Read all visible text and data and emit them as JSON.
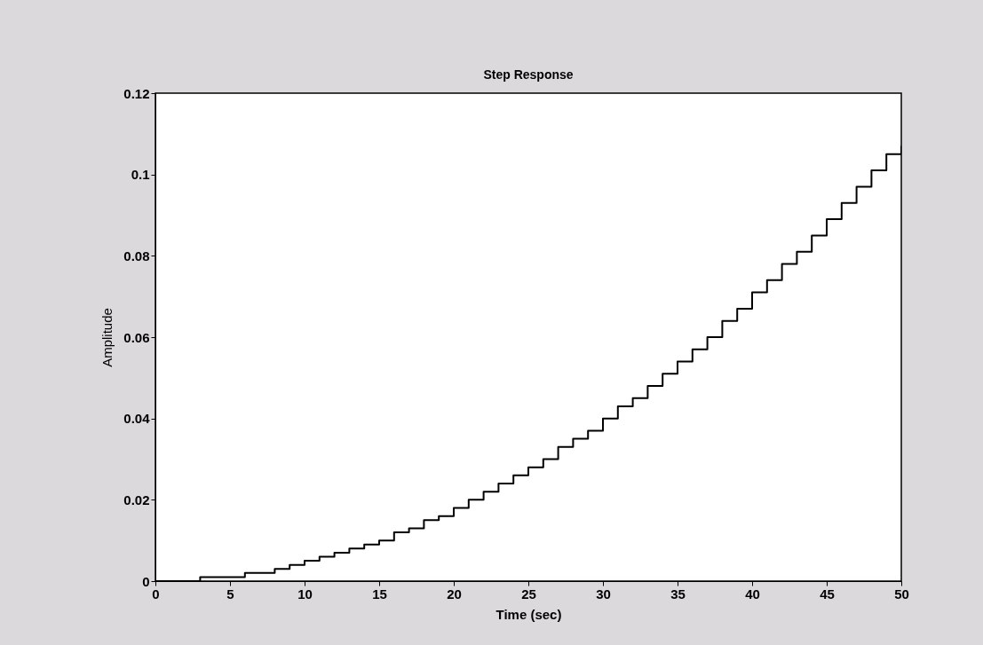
{
  "chart_data": {
    "type": "step",
    "title": "Step Response",
    "xlabel": "Time (sec)",
    "ylabel": "Amplitude",
    "x": [
      0,
      1,
      2,
      3,
      4,
      5,
      6,
      7,
      8,
      9,
      10,
      11,
      12,
      13,
      14,
      15,
      16,
      17,
      18,
      19,
      20,
      21,
      22,
      23,
      24,
      25,
      26,
      27,
      28,
      29,
      30,
      31,
      32,
      33,
      34,
      35,
      36,
      37,
      38,
      39,
      40,
      41,
      42,
      43,
      44,
      45,
      46,
      47,
      48,
      49,
      50
    ],
    "series": [
      {
        "color": "#000000",
        "values": [
          0.0,
          0.0,
          0.0,
          0.001,
          0.001,
          0.001,
          0.002,
          0.002,
          0.003,
          0.004,
          0.005,
          0.006,
          0.007,
          0.008,
          0.009,
          0.01,
          0.012,
          0.013,
          0.015,
          0.016,
          0.018,
          0.02,
          0.022,
          0.024,
          0.026,
          0.028,
          0.03,
          0.033,
          0.035,
          0.037,
          0.04,
          0.043,
          0.045,
          0.048,
          0.051,
          0.054,
          0.057,
          0.06,
          0.064,
          0.067,
          0.071,
          0.074,
          0.078,
          0.081,
          0.085,
          0.089,
          0.093,
          0.097,
          0.101,
          0.105,
          0.107
        ]
      }
    ],
    "xlim": [
      0,
      50
    ],
    "xticks": [
      0,
      5,
      10,
      15,
      20,
      25,
      30,
      35,
      40,
      45,
      50
    ],
    "ylim": [
      0,
      0.12
    ],
    "yticks": [
      0,
      0.02,
      0.04,
      0.06,
      0.08,
      0.1,
      0.12
    ],
    "grid": false
  }
}
